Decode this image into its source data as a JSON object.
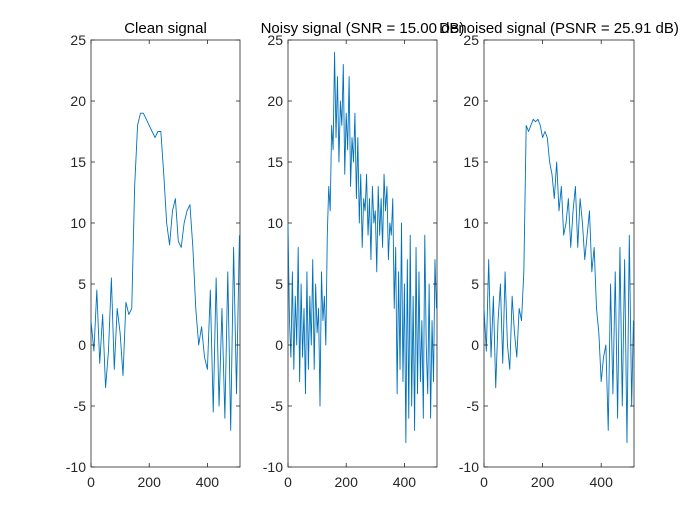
{
  "chart_data": [
    {
      "type": "line",
      "title": "Clean signal",
      "xlim": [
        0,
        512
      ],
      "ylim": [
        -10,
        25
      ],
      "xticks": [
        0,
        200,
        400
      ],
      "yticks": [
        -10,
        -5,
        0,
        5,
        10,
        15,
        20,
        25
      ],
      "color": "#0072BD",
      "series": [
        {
          "x": [
            0,
            10,
            20,
            30,
            40,
            50,
            60,
            70,
            80,
            90,
            100,
            110,
            120,
            130,
            140,
            150,
            160,
            170,
            180,
            190,
            200,
            210,
            220,
            230,
            240,
            250,
            260,
            270,
            280,
            290,
            300,
            310,
            320,
            330,
            340,
            350,
            360,
            370,
            380,
            390,
            400,
            410,
            420,
            430,
            440,
            450,
            460,
            470,
            480,
            490,
            500,
            510
          ],
          "y": [
            2,
            -0.5,
            4.5,
            -1.5,
            2.5,
            -3.5,
            -0.5,
            5.5,
            -2,
            3,
            1,
            -2.5,
            3.5,
            2.5,
            3,
            13,
            18,
            19,
            19,
            18.5,
            18,
            17.5,
            17,
            17.5,
            17.5,
            14,
            10,
            8.2,
            11,
            12,
            8.5,
            8,
            10,
            11,
            11.5,
            8,
            3,
            0,
            1.5,
            -1,
            -2,
            4.5,
            -5.5,
            5.5,
            -5,
            3,
            -6,
            6,
            -7,
            8,
            -4,
            9
          ]
        }
      ]
    },
    {
      "type": "line",
      "title": "Noisy signal (SNR = 15.00 dB)",
      "xlim": [
        0,
        512
      ],
      "ylim": [
        -10,
        25
      ],
      "xticks": [
        0,
        200,
        400
      ],
      "yticks": [
        -10,
        -5,
        0,
        5,
        10,
        15,
        20,
        25
      ],
      "color": "#0072BD",
      "series": [
        {
          "x": [
            0,
            5,
            10,
            15,
            20,
            25,
            30,
            35,
            40,
            45,
            50,
            55,
            60,
            65,
            70,
            75,
            80,
            85,
            90,
            95,
            100,
            105,
            110,
            115,
            120,
            125,
            130,
            135,
            140,
            145,
            150,
            155,
            160,
            165,
            170,
            175,
            180,
            185,
            190,
            195,
            200,
            205,
            210,
            215,
            220,
            225,
            230,
            235,
            240,
            245,
            250,
            255,
            260,
            265,
            270,
            275,
            280,
            285,
            290,
            295,
            300,
            305,
            310,
            315,
            320,
            325,
            330,
            335,
            340,
            345,
            350,
            355,
            360,
            365,
            370,
            375,
            380,
            385,
            390,
            395,
            400,
            405,
            410,
            415,
            420,
            425,
            430,
            435,
            440,
            445,
            450,
            455,
            460,
            465,
            470,
            475,
            480,
            485,
            490,
            495,
            500,
            505,
            510
          ],
          "y": [
            10,
            2,
            -1,
            6,
            -2,
            4,
            0,
            8,
            -3,
            5,
            -1,
            3,
            -4,
            6,
            -2,
            4,
            0,
            7,
            -2,
            5,
            1,
            3,
            -5,
            6,
            2,
            4,
            0,
            9,
            13,
            11,
            18,
            16,
            24,
            17,
            22,
            15,
            20,
            18,
            23,
            14,
            19,
            16,
            22,
            13,
            17,
            15,
            19,
            12,
            17,
            10,
            14,
            8,
            12,
            11,
            14,
            9,
            12,
            7,
            13,
            10,
            11,
            6,
            13,
            9,
            12,
            8,
            14,
            11,
            13,
            7,
            10,
            9,
            12,
            3,
            8,
            -4,
            6,
            -2,
            10,
            -3,
            5,
            -8,
            7,
            -6,
            9,
            -5,
            4,
            -7,
            8,
            -4,
            6,
            -3,
            2,
            -6,
            9,
            0,
            -4,
            5,
            -6,
            2,
            -3,
            7,
            3
          ]
        }
      ]
    },
    {
      "type": "line",
      "title": "Denoised signal (PSNR = 25.91 dB)",
      "xlim": [
        0,
        512
      ],
      "ylim": [
        -10,
        25
      ],
      "xticks": [
        0,
        200,
        400
      ],
      "yticks": [
        -10,
        -5,
        0,
        5,
        10,
        15,
        20,
        25
      ],
      "color": "#0072BD",
      "series": [
        {
          "x": [
            0,
            8,
            16,
            24,
            32,
            40,
            48,
            56,
            64,
            72,
            80,
            88,
            96,
            104,
            112,
            120,
            128,
            136,
            144,
            152,
            160,
            168,
            176,
            184,
            192,
            200,
            208,
            216,
            224,
            232,
            240,
            248,
            256,
            264,
            272,
            280,
            288,
            296,
            304,
            312,
            320,
            328,
            336,
            344,
            352,
            360,
            368,
            376,
            384,
            392,
            400,
            408,
            416,
            424,
            432,
            440,
            448,
            456,
            464,
            472,
            480,
            488,
            496,
            504,
            510
          ],
          "y": [
            3,
            -0.5,
            7,
            -1,
            4,
            -3.5,
            2,
            5,
            -1.5,
            6,
            0,
            -2,
            4,
            1,
            -1,
            3,
            2,
            6,
            18,
            17.5,
            18,
            18.5,
            18.3,
            18.5,
            18,
            17,
            17.5,
            17,
            15,
            14,
            12,
            15,
            11,
            13,
            9,
            10,
            12,
            8,
            11,
            13,
            8,
            12,
            10,
            7,
            9,
            11,
            6,
            8,
            3,
            1,
            -3,
            -1,
            0,
            -7,
            5,
            -4,
            6,
            -6,
            8,
            -5,
            7,
            -8,
            9,
            -5,
            2
          ]
        }
      ]
    }
  ]
}
